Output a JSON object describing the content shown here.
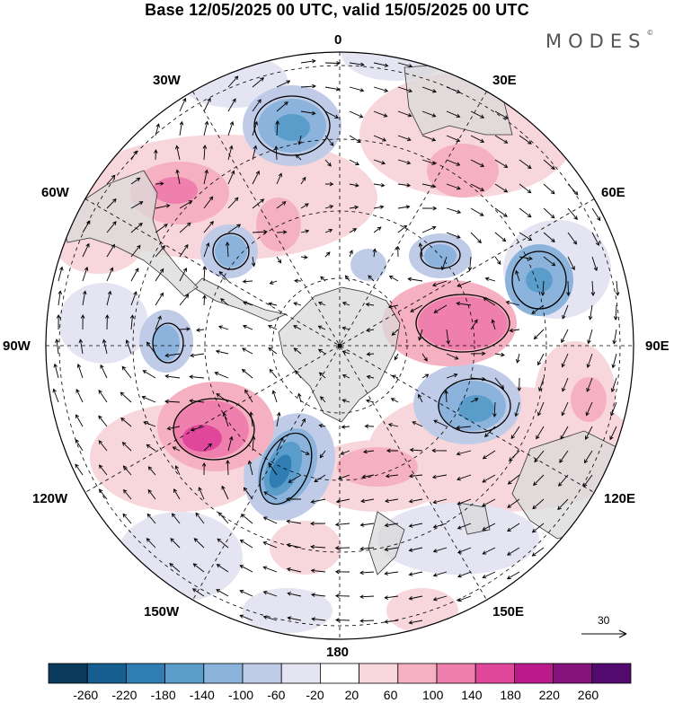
{
  "header": {
    "title": "Base 12/05/2025 00 UTC, valid 15/05/2025 00 UTC",
    "brand": "MODES",
    "brand_mark": "©"
  },
  "map": {
    "projection": "south polar stereographic",
    "longitude_labels": {
      "lon_0": "0",
      "lon_30e": "30E",
      "lon_60e": "60E",
      "lon_90e": "90E",
      "lon_120e": "120E",
      "lon_150e": "150E",
      "lon_180": "180",
      "lon_150w": "150W",
      "lon_120w": "120W",
      "lon_90w": "90W",
      "lon_60w": "60W",
      "lon_30w": "30W"
    },
    "colors": {
      "land": "#d9d9d9",
      "grid": "#000000",
      "contour": "#000000"
    }
  },
  "reference_vector": {
    "label": "30"
  },
  "colorbar": {
    "ticks": [
      "-260",
      "-220",
      "-180",
      "-140",
      "-100",
      "-60",
      "-20",
      "20",
      "60",
      "100",
      "140",
      "180",
      "220",
      "260"
    ],
    "colors": [
      "#0b3b5c",
      "#155e8f",
      "#2f7db3",
      "#5a9dcb",
      "#8cb3db",
      "#bfcbe7",
      "#e4e4f2",
      "#ffffff",
      "#f8d7dc",
      "#f5b1c1",
      "#ef7fac",
      "#e0479a",
      "#bb1a8a",
      "#86127d",
      "#520a6e"
    ]
  }
}
